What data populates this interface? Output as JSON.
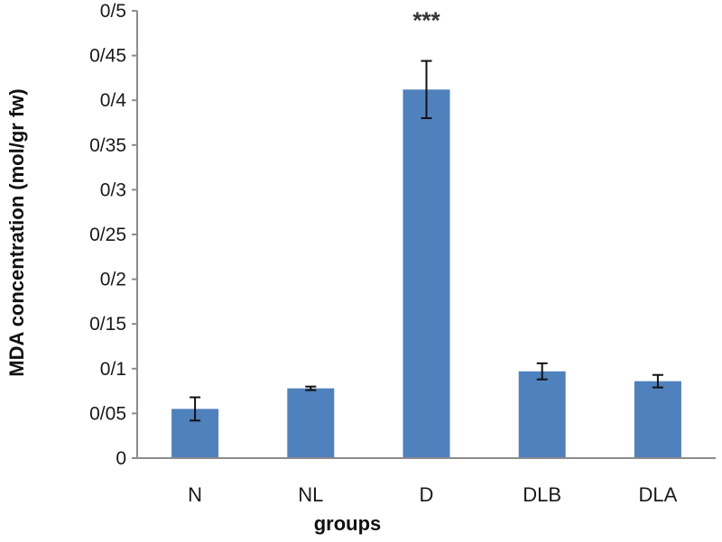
{
  "chart_data": {
    "type": "bar",
    "categories": [
      "N",
      "NL",
      "D",
      "DLB",
      "DLA"
    ],
    "values": [
      0.055,
      0.078,
      0.412,
      0.097,
      0.086
    ],
    "error": [
      0.013,
      0.002,
      0.032,
      0.009,
      0.007
    ],
    "annotations": [
      {
        "category": "D",
        "text": "***"
      }
    ],
    "ylim": [
      0,
      0.5
    ],
    "yticks": [
      0,
      0.05,
      0.1,
      0.15,
      0.2,
      0.25,
      0.3,
      0.35,
      0.4,
      0.45,
      0.5
    ],
    "ytick_labels": [
      "0",
      "0/05",
      "0/1",
      "0/15",
      "0/2",
      "0/25",
      "0/3",
      "0/35",
      "0/4",
      "0/45",
      "0/5"
    ],
    "xlabel": "groups",
    "ylabel": "MDA concentration  (mol/gr fw)",
    "grid": false,
    "bar_color": "#4f81bd",
    "axis_color": "#8c8c8c"
  }
}
